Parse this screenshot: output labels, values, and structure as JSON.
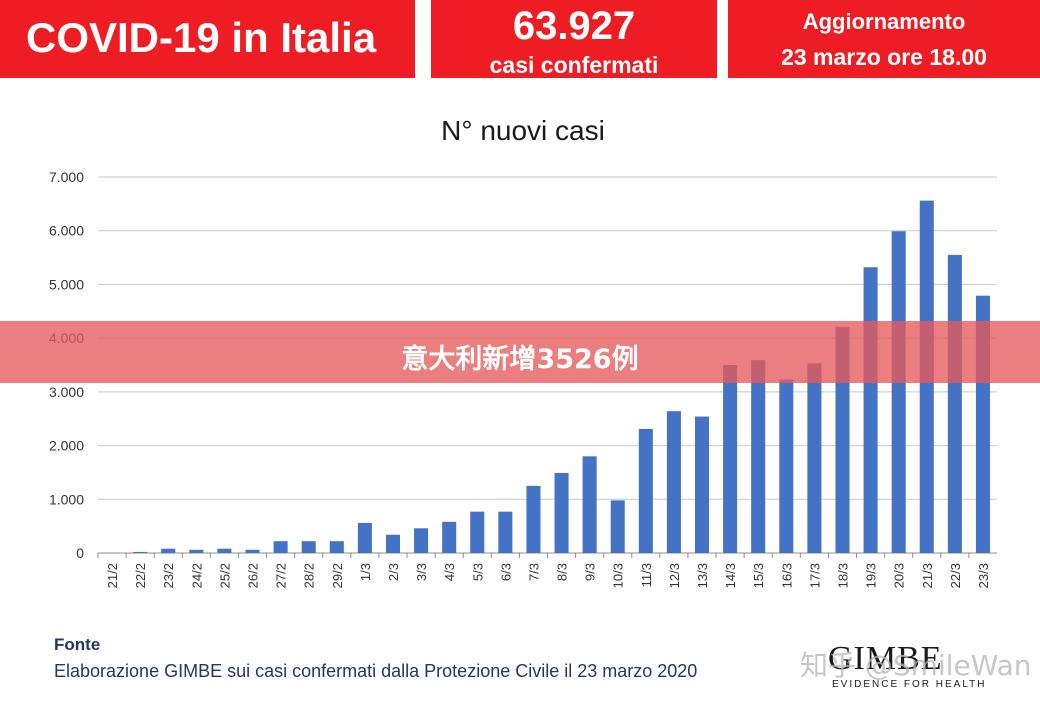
{
  "header": {
    "title": "COVID-19 in Italia",
    "count_value": "63.927",
    "count_label": "casi confermati",
    "update_title": "Aggiornamento",
    "update_date": "23 marzo ore 18.00"
  },
  "banner": {
    "text": "意大利新增3526例"
  },
  "source": {
    "title": "Fonte",
    "text": "Elaborazione GIMBE sui casi confermati dalla Protezione Civile il 23 marzo 2020"
  },
  "logo": {
    "name": "GIMBE",
    "tagline": "EVIDENCE FOR HEALTH"
  },
  "watermark": {
    "text": "知乎 @SmileWan"
  },
  "colors": {
    "header": "#ee1d23",
    "bar": "#4472c4",
    "banner": "#e65a5a"
  },
  "chart_data": {
    "type": "bar",
    "title": "N° nuovi casi",
    "categories": [
      "21/2",
      "22/2",
      "23/2",
      "24/2",
      "25/2",
      "26/2",
      "27/2",
      "28/2",
      "29/2",
      "1/3",
      "2/3",
      "3/3",
      "4/3",
      "5/3",
      "6/3",
      "7/3",
      "8/3",
      "9/3",
      "10/3",
      "11/3",
      "12/3",
      "13/3",
      "14/3",
      "15/3",
      "16/3",
      "17/3",
      "18/3",
      "19/3",
      "20/3",
      "21/3",
      "22/3",
      "23/3"
    ],
    "values": [
      0,
      20,
      80,
      60,
      80,
      60,
      220,
      220,
      220,
      560,
      340,
      460,
      580,
      770,
      770,
      1250,
      1490,
      1800,
      980,
      2310,
      2640,
      2540,
      3500,
      3590,
      3230,
      3530,
      4210,
      5320,
      5990,
      6560,
      5550,
      4790
    ],
    "ylim": [
      0,
      7000
    ],
    "yticks": [
      "0",
      "1.000",
      "2.000",
      "3.000",
      "4.000",
      "5.000",
      "6.000",
      "7.000"
    ],
    "grid": true,
    "legend": "none"
  }
}
